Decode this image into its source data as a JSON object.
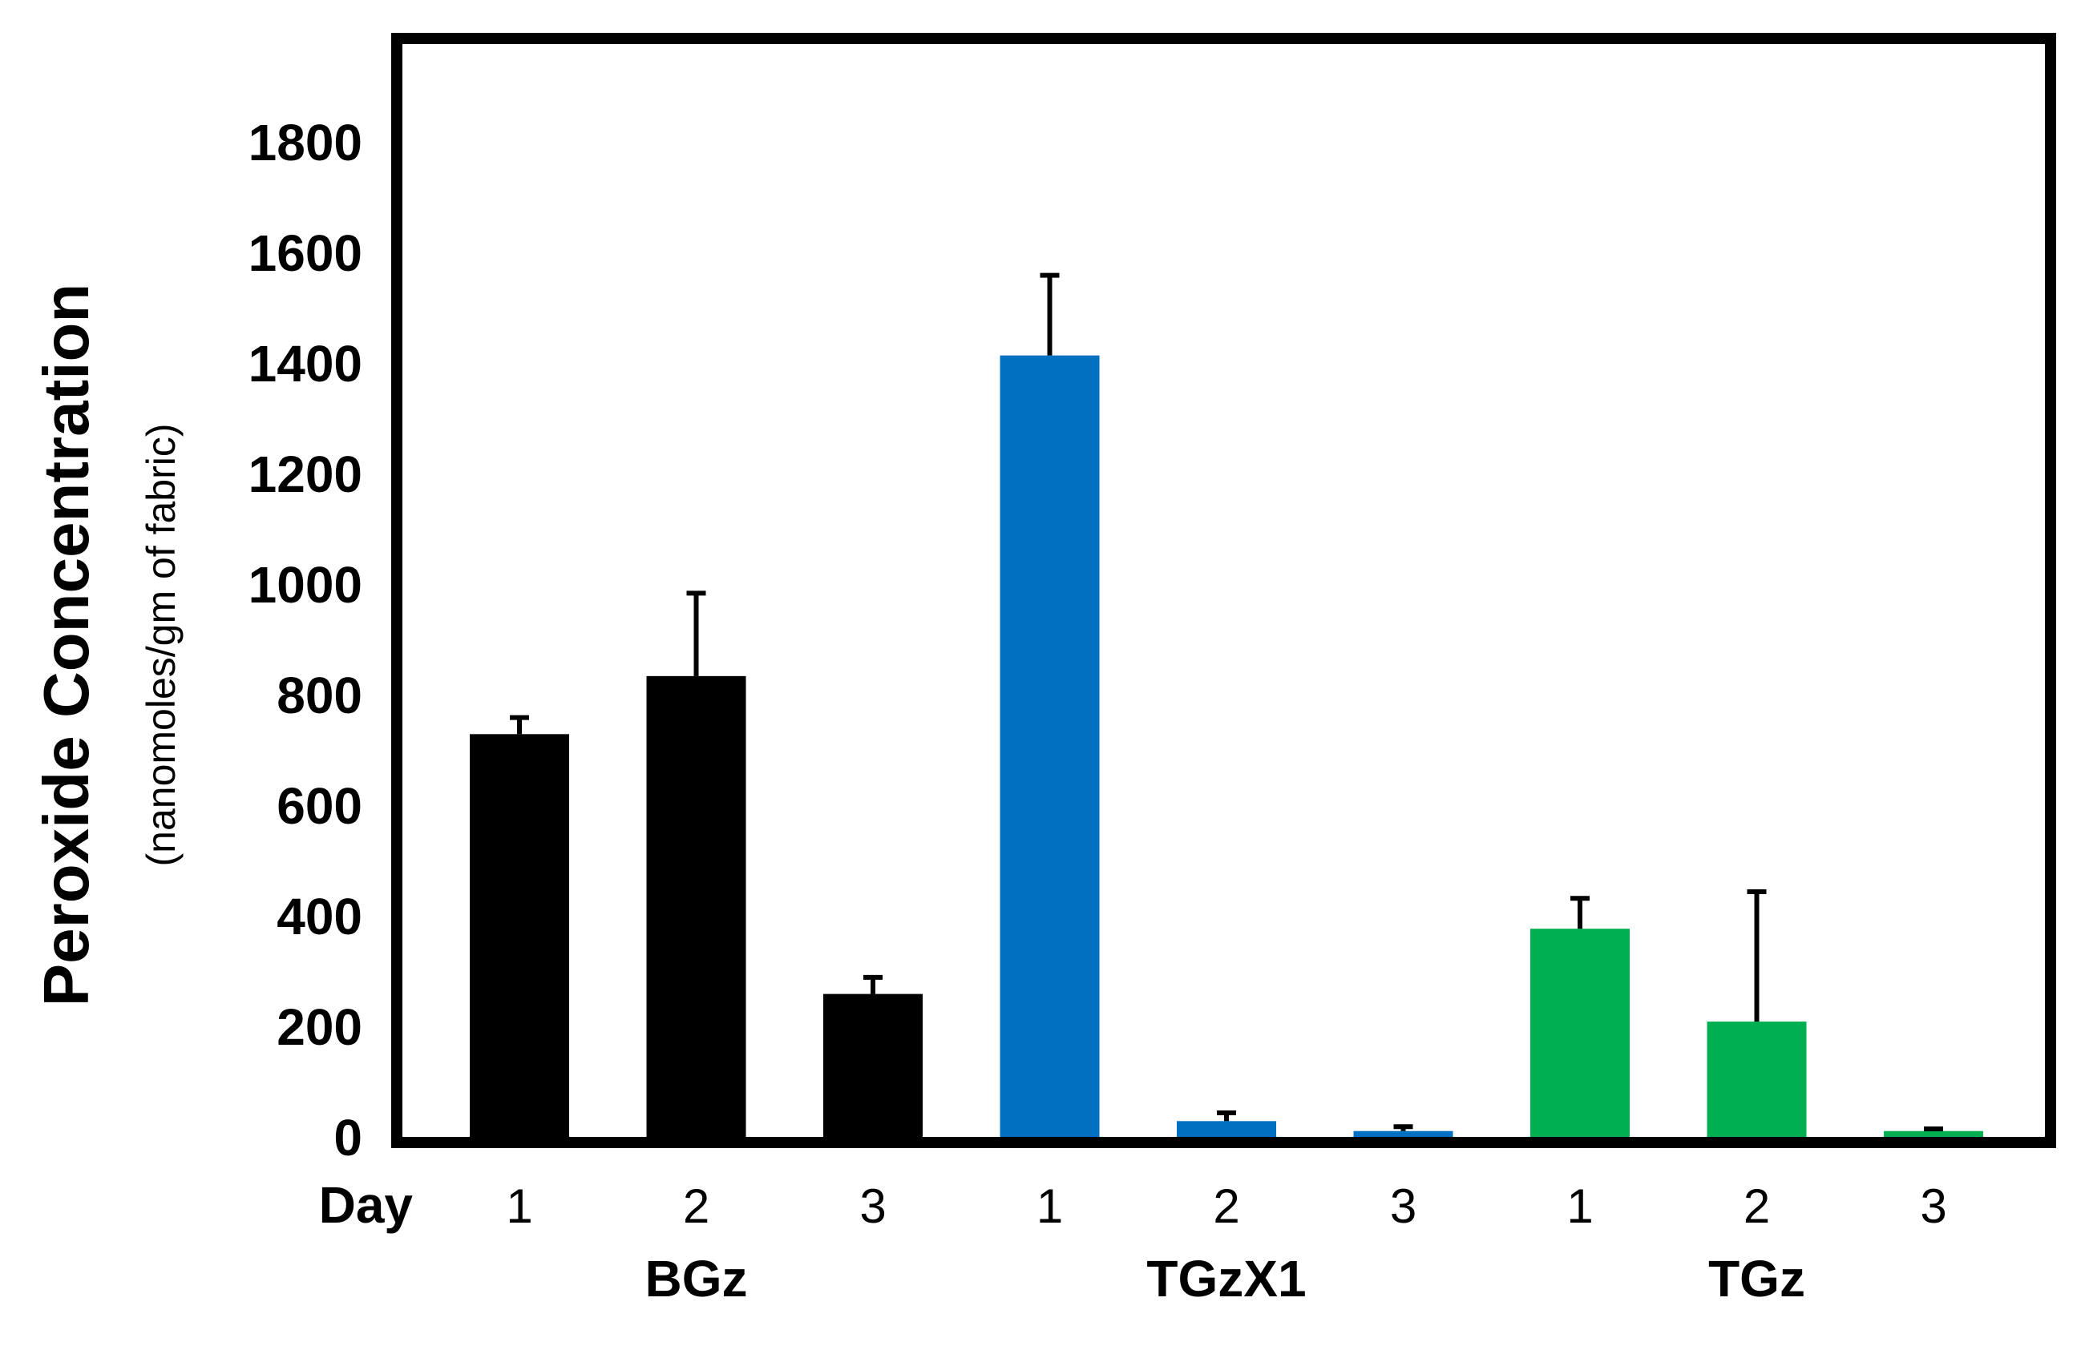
{
  "chart_data": {
    "type": "bar",
    "title": "",
    "ylabel": "Peroxide Concentration",
    "ylabel_sub": "(nanomoles/gm of fabric)",
    "xlabel_prefix": "Day",
    "ylim": [
      0,
      2000
    ],
    "yticks": [
      0,
      200,
      400,
      600,
      800,
      1000,
      1200,
      1400,
      1600,
      1800
    ],
    "grid": false,
    "groups": [
      {
        "name": "BGz",
        "color": "#000000",
        "days": [
          "1",
          "2",
          "3"
        ],
        "values": [
          730,
          835,
          260
        ],
        "errors": [
          30,
          150,
          30
        ]
      },
      {
        "name": "TGzX1",
        "color": "#0070C0",
        "days": [
          "1",
          "2",
          "3"
        ],
        "values": [
          1415,
          30,
          12
        ],
        "errors": [
          145,
          15,
          8
        ]
      },
      {
        "name": "TGz",
        "color": "#00B050",
        "days": [
          "1",
          "2",
          "3"
        ],
        "values": [
          378,
          210,
          12
        ],
        "errors": [
          55,
          235,
          4
        ]
      }
    ]
  }
}
